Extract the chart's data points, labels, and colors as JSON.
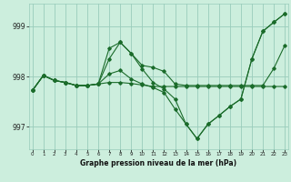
{
  "title": "Graphe pression niveau de la mer (hPa)",
  "bg_color": "#cceedd",
  "grid_color": "#99ccbb",
  "line_color": "#1a6b2a",
  "ylim": [
    996.55,
    999.45
  ],
  "yticks": [
    997,
    998,
    999
  ],
  "xlim": [
    -0.3,
    23.3
  ],
  "xticks": [
    0,
    1,
    2,
    3,
    4,
    5,
    6,
    7,
    8,
    9,
    10,
    11,
    12,
    13,
    14,
    15,
    16,
    17,
    18,
    19,
    20,
    21,
    22,
    23
  ],
  "series": [
    [
      997.72,
      998.02,
      997.92,
      997.88,
      997.82,
      997.82,
      997.85,
      997.88,
      997.88,
      997.86,
      997.83,
      997.8,
      997.8,
      997.8,
      997.8,
      997.8,
      997.8,
      997.8,
      997.8,
      997.8,
      997.8,
      997.8,
      997.8,
      997.8
    ],
    [
      997.72,
      998.02,
      997.92,
      997.88,
      997.82,
      997.82,
      997.85,
      998.56,
      998.68,
      998.46,
      998.22,
      998.18,
      998.1,
      997.85,
      997.82,
      997.82,
      997.82,
      997.82,
      997.82,
      997.82,
      997.82,
      997.82,
      998.16,
      998.62
    ],
    [
      997.72,
      998.02,
      997.92,
      997.88,
      997.82,
      997.82,
      997.85,
      998.35,
      998.68,
      998.46,
      998.15,
      997.88,
      997.75,
      997.55,
      997.05,
      996.76,
      997.05,
      997.22,
      997.4,
      997.55,
      998.35,
      998.9,
      999.08,
      999.25
    ],
    [
      997.72,
      998.02,
      997.92,
      997.88,
      997.82,
      997.82,
      997.85,
      998.05,
      998.12,
      997.95,
      997.85,
      997.78,
      997.68,
      997.35,
      997.05,
      996.76,
      997.05,
      997.22,
      997.4,
      997.55,
      998.35,
      998.9,
      999.08,
      999.25
    ]
  ]
}
